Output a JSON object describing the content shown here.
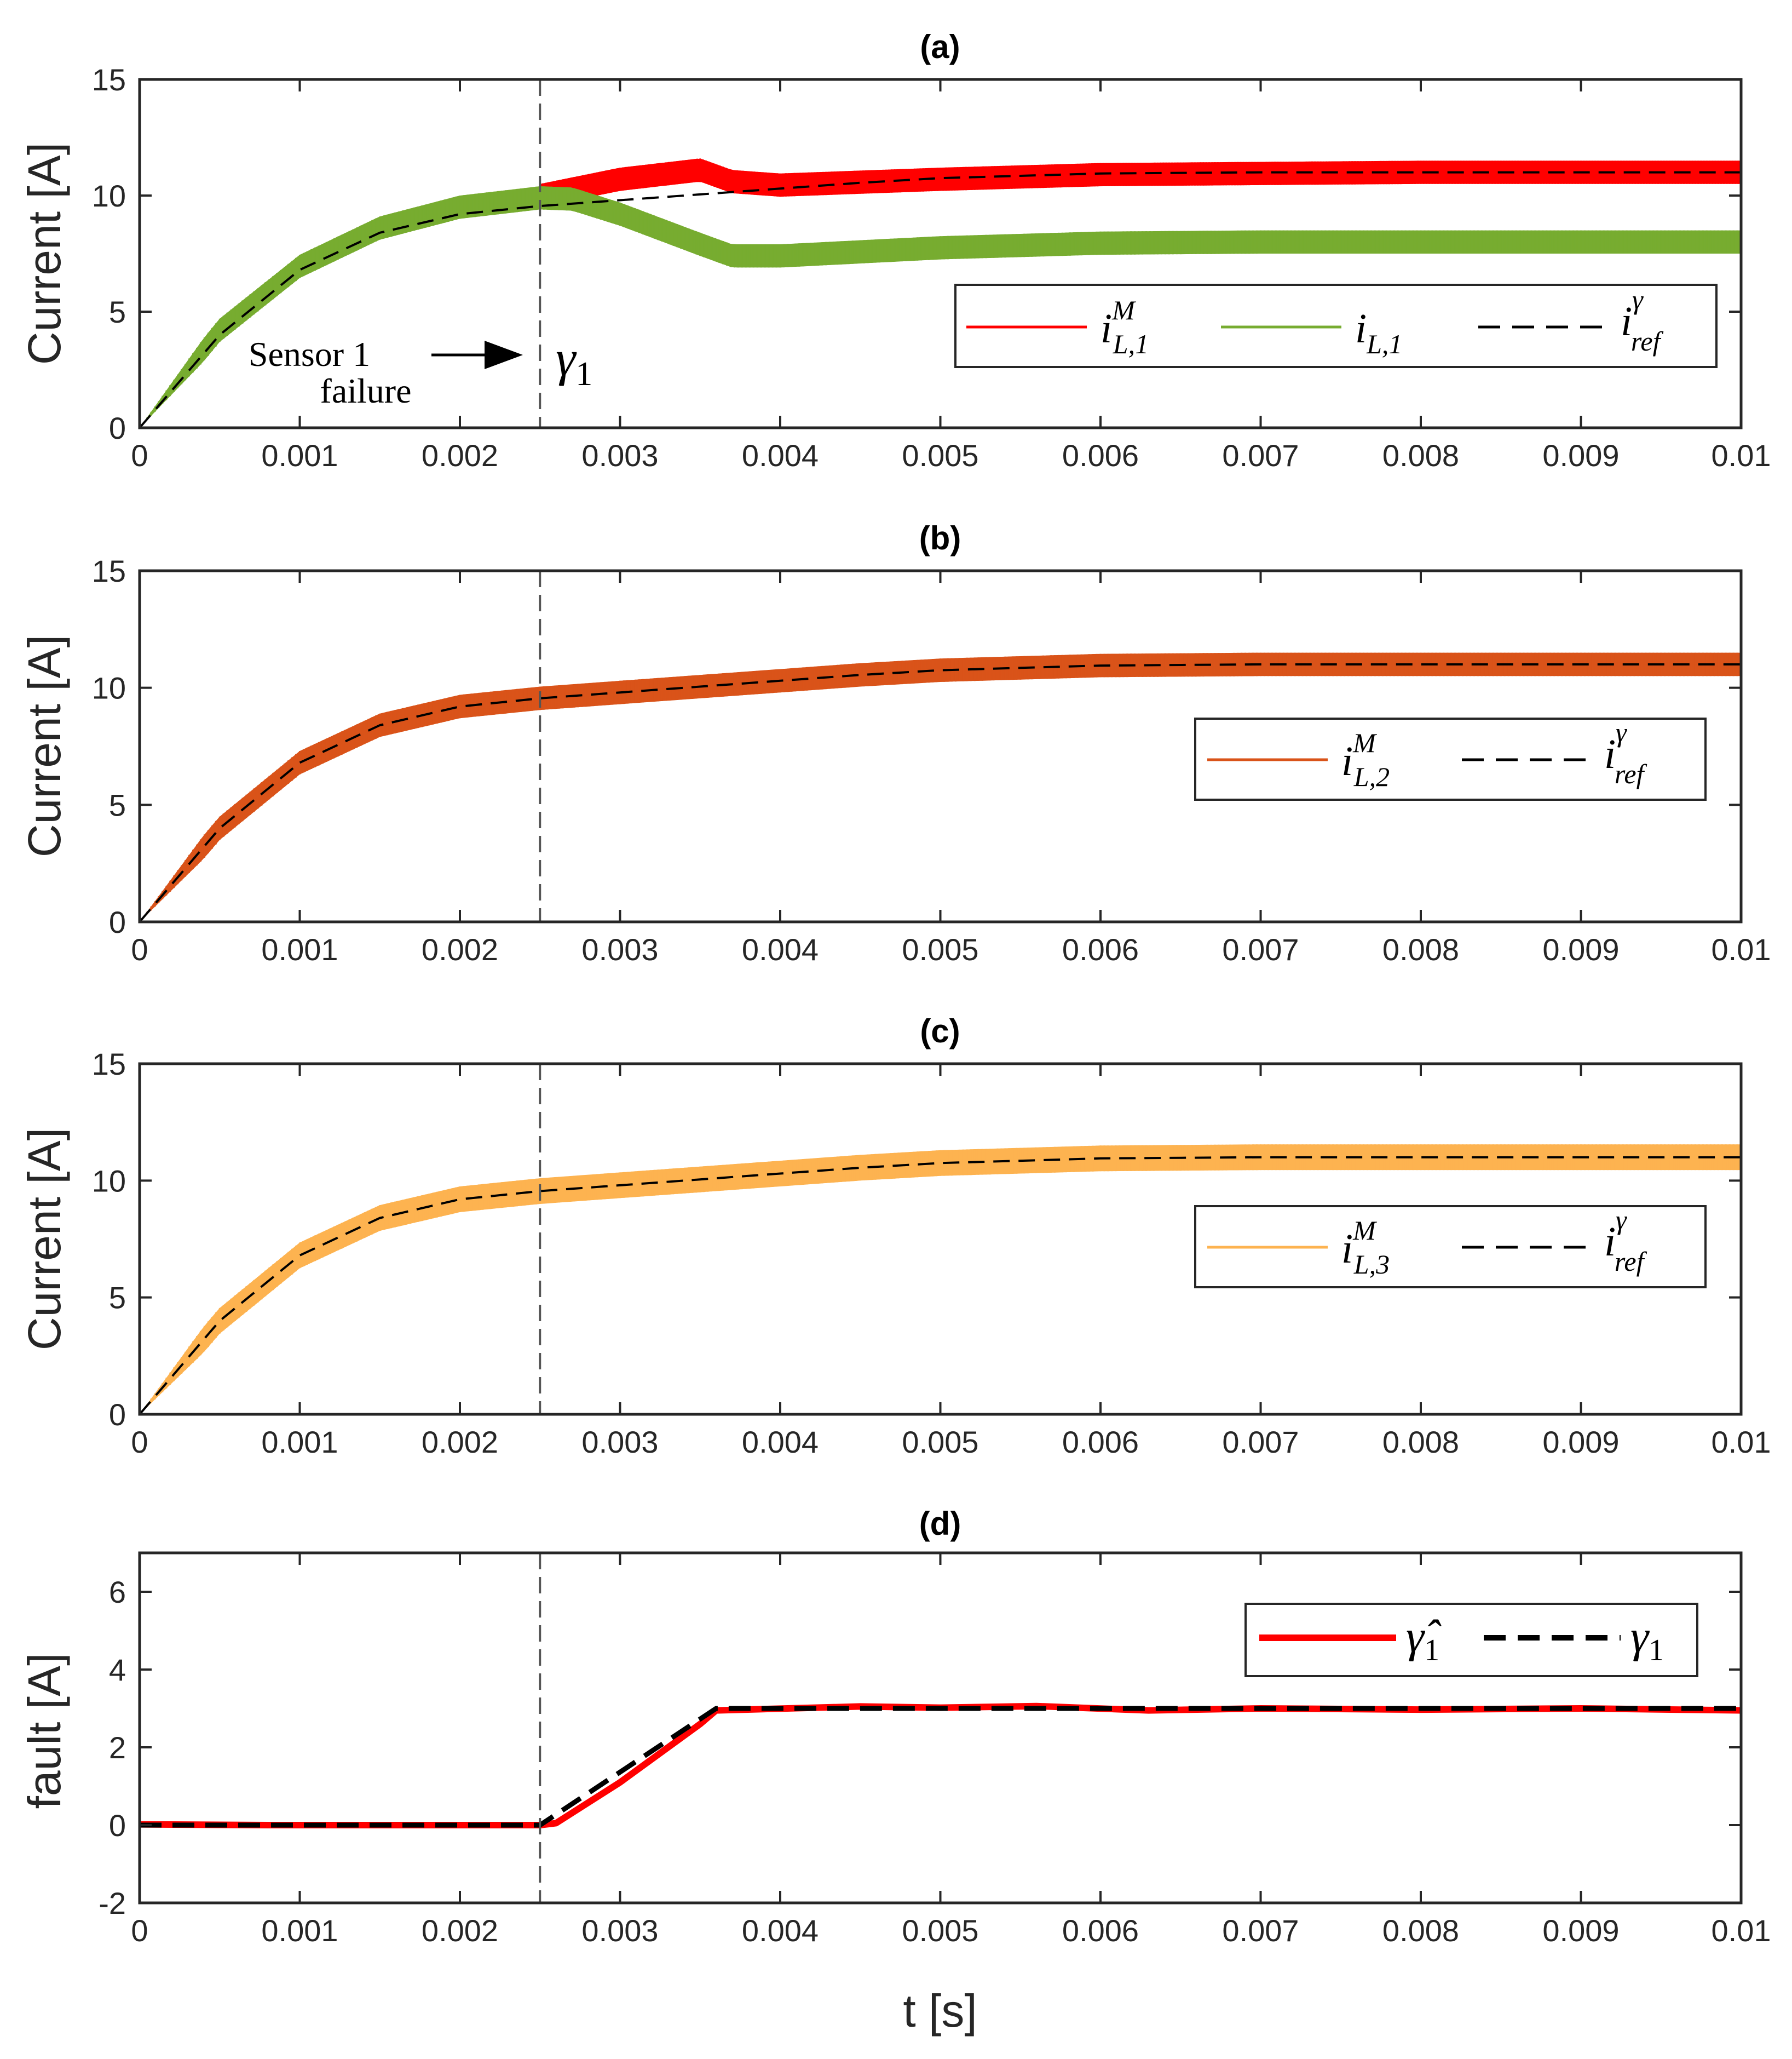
{
  "figure": {
    "xlabel": "t [s]",
    "fault_time_s": 0.0025
  },
  "chart_data": [
    {
      "panel": "a",
      "type": "line",
      "title": "(a)",
      "xlabel": "",
      "ylabel": "Current [A]",
      "xlim": [
        0,
        0.01
      ],
      "ylim": [
        0,
        15
      ],
      "xticks": [
        "0",
        "0.001",
        "0.002",
        "0.003",
        "0.004",
        "0.005",
        "0.006",
        "0.007",
        "0.008",
        "0.009",
        "0.01"
      ],
      "yticks": [
        "0",
        "5",
        "10",
        "15"
      ],
      "series": [
        {
          "name": "i^M_{L,1}",
          "color": "#ff0000",
          "style": "band",
          "x": [
            0,
            0.0005,
            0.001,
            0.0015,
            0.002,
            0.0025,
            0.003,
            0.0035,
            0.0037,
            0.004,
            0.005,
            0.006,
            0.007,
            0.008,
            0.009,
            0.01
          ],
          "values": [
            0,
            4.2,
            6.95,
            8.6,
            9.5,
            10.0,
            10.7,
            11.1,
            10.6,
            10.45,
            10.7,
            10.9,
            10.95,
            11.0,
            11.0,
            11.0
          ],
          "band_halfwidth": 0.5,
          "visible_from": 0.0025
        },
        {
          "name": "i_{L,1}",
          "color": "#77ac30",
          "style": "band",
          "x": [
            0,
            0.0005,
            0.001,
            0.0015,
            0.002,
            0.0025,
            0.0027,
            0.003,
            0.0035,
            0.0037,
            0.004,
            0.005,
            0.006,
            0.007,
            0.008,
            0.009,
            0.01
          ],
          "values": [
            0,
            4.2,
            6.95,
            8.6,
            9.5,
            9.9,
            9.85,
            9.2,
            7.9,
            7.4,
            7.4,
            7.75,
            7.95,
            8.0,
            8.0,
            8.0,
            8.0
          ],
          "band_halfwidth": 0.5
        },
        {
          "name": "i^γ_{ref}",
          "color": "#000000",
          "style": "dashed",
          "x": [
            0,
            0.0005,
            0.001,
            0.0015,
            0.002,
            0.0025,
            0.003,
            0.0035,
            0.004,
            0.0045,
            0.005,
            0.0055,
            0.006,
            0.007,
            0.008,
            0.009,
            0.01
          ],
          "values": [
            0,
            4.0,
            6.8,
            8.4,
            9.2,
            9.55,
            9.8,
            10.05,
            10.3,
            10.55,
            10.75,
            10.85,
            10.95,
            11.0,
            11.0,
            11.0,
            11.0
          ]
        }
      ],
      "legend": {
        "position": "right",
        "entries": [
          "i^M_{L,1}",
          "i_{L,1}",
          "i^γ_{ref}"
        ]
      },
      "annotations": {
        "sensor_label_1": "Sensor 1",
        "sensor_label_2": "failure",
        "gamma_label": "γ",
        "gamma_sub": "1"
      }
    },
    {
      "panel": "b",
      "type": "line",
      "title": "(b)",
      "ylabel": "Current [A]",
      "xlim": [
        0,
        0.01
      ],
      "ylim": [
        0,
        15
      ],
      "xticks": [
        "0",
        "0.001",
        "0.002",
        "0.003",
        "0.004",
        "0.005",
        "0.006",
        "0.007",
        "0.008",
        "0.009",
        "0.01"
      ],
      "yticks": [
        "0",
        "5",
        "10",
        "15"
      ],
      "series": [
        {
          "name": "i^M_{L,2}",
          "color": "#d95319",
          "style": "band",
          "x": [
            0,
            0.0005,
            0.001,
            0.0015,
            0.002,
            0.0025,
            0.003,
            0.0035,
            0.004,
            0.0045,
            0.005,
            0.0055,
            0.006,
            0.007,
            0.008,
            0.009,
            0.01
          ],
          "values": [
            0,
            4.0,
            6.8,
            8.4,
            9.2,
            9.55,
            9.8,
            10.05,
            10.3,
            10.55,
            10.75,
            10.85,
            10.95,
            11.0,
            11.0,
            11.0,
            11.0
          ],
          "band_halfwidth": 0.5
        },
        {
          "name": "i^γ_{ref}",
          "color": "#000000",
          "style": "dashed",
          "x": [
            0,
            0.0005,
            0.001,
            0.0015,
            0.002,
            0.0025,
            0.003,
            0.0035,
            0.004,
            0.0045,
            0.005,
            0.0055,
            0.006,
            0.007,
            0.008,
            0.009,
            0.01
          ],
          "values": [
            0,
            4.0,
            6.8,
            8.4,
            9.2,
            9.55,
            9.8,
            10.05,
            10.3,
            10.55,
            10.75,
            10.85,
            10.95,
            11.0,
            11.0,
            11.0,
            11.0
          ]
        }
      ],
      "legend": {
        "position": "right",
        "entries": [
          "i^M_{L,2}",
          "i^γ_{ref}"
        ]
      }
    },
    {
      "panel": "c",
      "type": "line",
      "title": "(c)",
      "ylabel": "Current [A]",
      "xlim": [
        0,
        0.01
      ],
      "ylim": [
        0,
        15
      ],
      "xticks": [
        "0",
        "0.001",
        "0.002",
        "0.003",
        "0.004",
        "0.005",
        "0.006",
        "0.007",
        "0.008",
        "0.009",
        "0.01"
      ],
      "yticks": [
        "0",
        "5",
        "10",
        "15"
      ],
      "series": [
        {
          "name": "i^M_{L,3}",
          "color": "#fdb350",
          "style": "band",
          "x": [
            0,
            0.0005,
            0.001,
            0.0015,
            0.002,
            0.0025,
            0.003,
            0.0035,
            0.004,
            0.0045,
            0.005,
            0.0055,
            0.006,
            0.007,
            0.008,
            0.009,
            0.01
          ],
          "values": [
            0,
            4.0,
            6.8,
            8.4,
            9.2,
            9.55,
            9.8,
            10.05,
            10.3,
            10.55,
            10.75,
            10.85,
            10.95,
            11.0,
            11.0,
            11.0,
            11.0
          ],
          "band_halfwidth": 0.55
        },
        {
          "name": "i^γ_{ref}",
          "color": "#000000",
          "style": "dashed",
          "x": [
            0,
            0.0005,
            0.001,
            0.0015,
            0.002,
            0.0025,
            0.003,
            0.0035,
            0.004,
            0.0045,
            0.005,
            0.0055,
            0.006,
            0.007,
            0.008,
            0.009,
            0.01
          ],
          "values": [
            0,
            4.0,
            6.8,
            8.4,
            9.2,
            9.55,
            9.8,
            10.05,
            10.3,
            10.55,
            10.75,
            10.85,
            10.95,
            11.0,
            11.0,
            11.0,
            11.0
          ]
        }
      ],
      "legend": {
        "position": "right",
        "entries": [
          "i^M_{L,3}",
          "i^γ_{ref}"
        ]
      }
    },
    {
      "panel": "d",
      "type": "line",
      "title": "(d)",
      "ylabel": "fault [A]",
      "xlim": [
        0,
        0.01
      ],
      "ylim": [
        -2,
        7
      ],
      "xticks": [
        "0",
        "0.001",
        "0.002",
        "0.003",
        "0.004",
        "0.005",
        "0.006",
        "0.007",
        "0.008",
        "0.009",
        "0.01"
      ],
      "yticks": [
        "-2",
        "0",
        "2",
        "4",
        "6"
      ],
      "series": [
        {
          "name": "γ̂_1",
          "color": "#ff0000",
          "style": "solid-thick",
          "x": [
            0,
            0.0008,
            0.0025,
            0.0026,
            0.003,
            0.0035,
            0.0036,
            0.0045,
            0.005,
            0.0056,
            0.0063,
            0.007,
            0.008,
            0.009,
            0.01
          ],
          "values": [
            0.02,
            0.0,
            0.0,
            0.05,
            1.1,
            2.6,
            2.95,
            3.05,
            3.02,
            3.06,
            2.95,
            3.0,
            2.97,
            3.0,
            2.95
          ]
        },
        {
          "name": "γ_1",
          "color": "#000000",
          "style": "dashed-thick",
          "x": [
            0,
            0.0025,
            0.0036,
            0.01
          ],
          "values": [
            0,
            0,
            3.0,
            3.0
          ]
        }
      ],
      "legend": {
        "position": "top-right",
        "entries": [
          "γ̂_1",
          "γ_1"
        ]
      }
    }
  ]
}
